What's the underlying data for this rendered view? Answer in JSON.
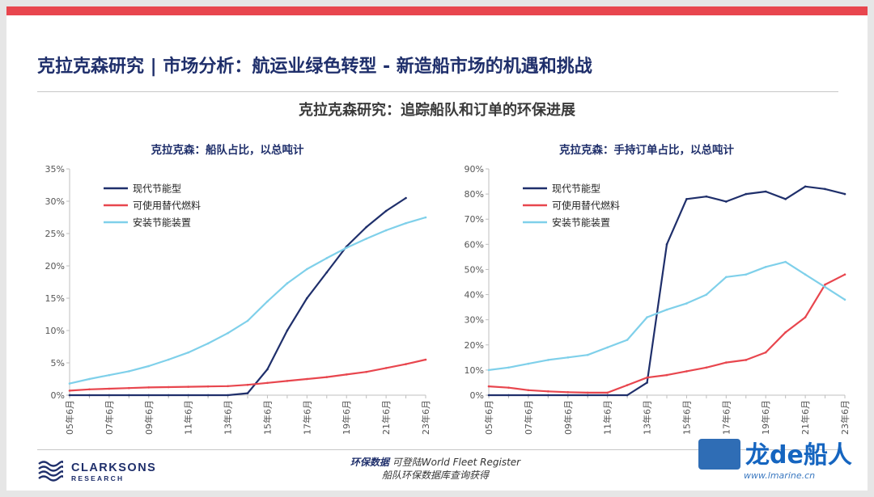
{
  "header": {
    "title": "克拉克森研究 | 市场分析：航运业绿色转型 - 新造船市场的机遇和挑战",
    "subtitle": "克拉克森研究：追踪船队和订单的环保进展",
    "accent_color": "#e8464e"
  },
  "chart_data": [
    {
      "type": "line",
      "title": "克拉克森：船队占比，以总吨计",
      "x": [
        "05年6月",
        "06年6月",
        "07年6月",
        "08年6月",
        "09年6月",
        "10年6月",
        "11年6月",
        "12年6月",
        "13年6月",
        "14年6月",
        "15年6月",
        "16年6月",
        "17年6月",
        "18年6月",
        "19年6月",
        "20年6月",
        "21年6月",
        "22年6月",
        "23年6月"
      ],
      "x_tick_labels": [
        "05年6月",
        "07年6月",
        "09年6月",
        "11年6月",
        "13年6月",
        "15年6月",
        "17年6月",
        "19年6月",
        "21年6月",
        "23年6月"
      ],
      "ylim": [
        0,
        35
      ],
      "y_ticks": [
        "0%",
        "5%",
        "10%",
        "15%",
        "20%",
        "25%",
        "30%",
        "35%"
      ],
      "legend_position": "top-left",
      "series": [
        {
          "name": "现代节能型",
          "color": "#1f2f6b",
          "values": [
            0,
            0,
            0,
            0,
            0,
            0,
            0,
            0,
            0,
            0.3,
            4,
            10,
            15,
            19,
            23,
            26,
            28.5,
            30.5,
            null
          ]
        },
        {
          "name": "可使用替代燃料",
          "color": "#e8464e",
          "values": [
            0.7,
            0.9,
            1.0,
            1.1,
            1.2,
            1.25,
            1.3,
            1.35,
            1.4,
            1.6,
            1.9,
            2.2,
            2.5,
            2.8,
            3.2,
            3.6,
            4.2,
            4.8,
            5.5
          ]
        },
        {
          "name": "安装节能装置",
          "color": "#7fd0ea",
          "values": [
            1.8,
            2.5,
            3.1,
            3.7,
            4.5,
            5.5,
            6.6,
            8.0,
            9.6,
            11.5,
            14.5,
            17.3,
            19.5,
            21.2,
            22.8,
            24.2,
            25.5,
            26.6,
            27.5
          ]
        }
      ]
    },
    {
      "type": "line",
      "title": "克拉克森：手持订单占比，以总吨计",
      "x": [
        "05年6月",
        "06年6月",
        "07年6月",
        "08年6月",
        "09年6月",
        "10年6月",
        "11年6月",
        "12年6月",
        "13年6月",
        "14年6月",
        "15年6月",
        "16年6月",
        "17年6月",
        "18年6月",
        "19年6月",
        "20年6月",
        "21年6月",
        "22年6月",
        "23年6月"
      ],
      "x_tick_labels": [
        "05年6月",
        "07年6月",
        "09年6月",
        "11年6月",
        "13年6月",
        "15年6月",
        "17年6月",
        "19年6月",
        "21年6月",
        "23年6月"
      ],
      "ylim": [
        0,
        90
      ],
      "y_ticks": [
        "0%",
        "10%",
        "20%",
        "30%",
        "40%",
        "50%",
        "60%",
        "70%",
        "80%",
        "90%"
      ],
      "legend_position": "top-left",
      "series": [
        {
          "name": "现代节能型",
          "color": "#1f2f6b",
          "values": [
            0,
            0,
            0,
            0,
            0,
            0,
            0,
            0,
            5,
            60,
            78,
            79,
            77,
            80,
            81,
            78,
            83,
            82,
            80
          ]
        },
        {
          "name": "可使用替代燃料",
          "color": "#e8464e",
          "values": [
            3.5,
            3,
            2,
            1.5,
            1.2,
            1,
            1,
            4,
            7,
            8,
            9.5,
            11,
            13,
            14,
            17,
            25,
            31,
            44,
            48
          ]
        },
        {
          "name": "安装节能装置",
          "color": "#7fd0ea",
          "values": [
            10,
            11,
            12.5,
            14,
            15,
            16,
            19,
            22,
            31,
            34,
            36.5,
            40,
            47,
            48,
            51,
            53,
            48,
            43,
            38
          ]
        }
      ]
    }
  ],
  "footer": {
    "logo_name": "CLARKSONS",
    "logo_sub": "RESEARCH",
    "note_bold": "环保数据",
    "note_line1": "可登陆World Fleet Register",
    "note_line2": "船队环保数据库查询获得"
  },
  "watermark": {
    "brand": "龙de船人",
    "url": "www.lmarine.cn"
  }
}
